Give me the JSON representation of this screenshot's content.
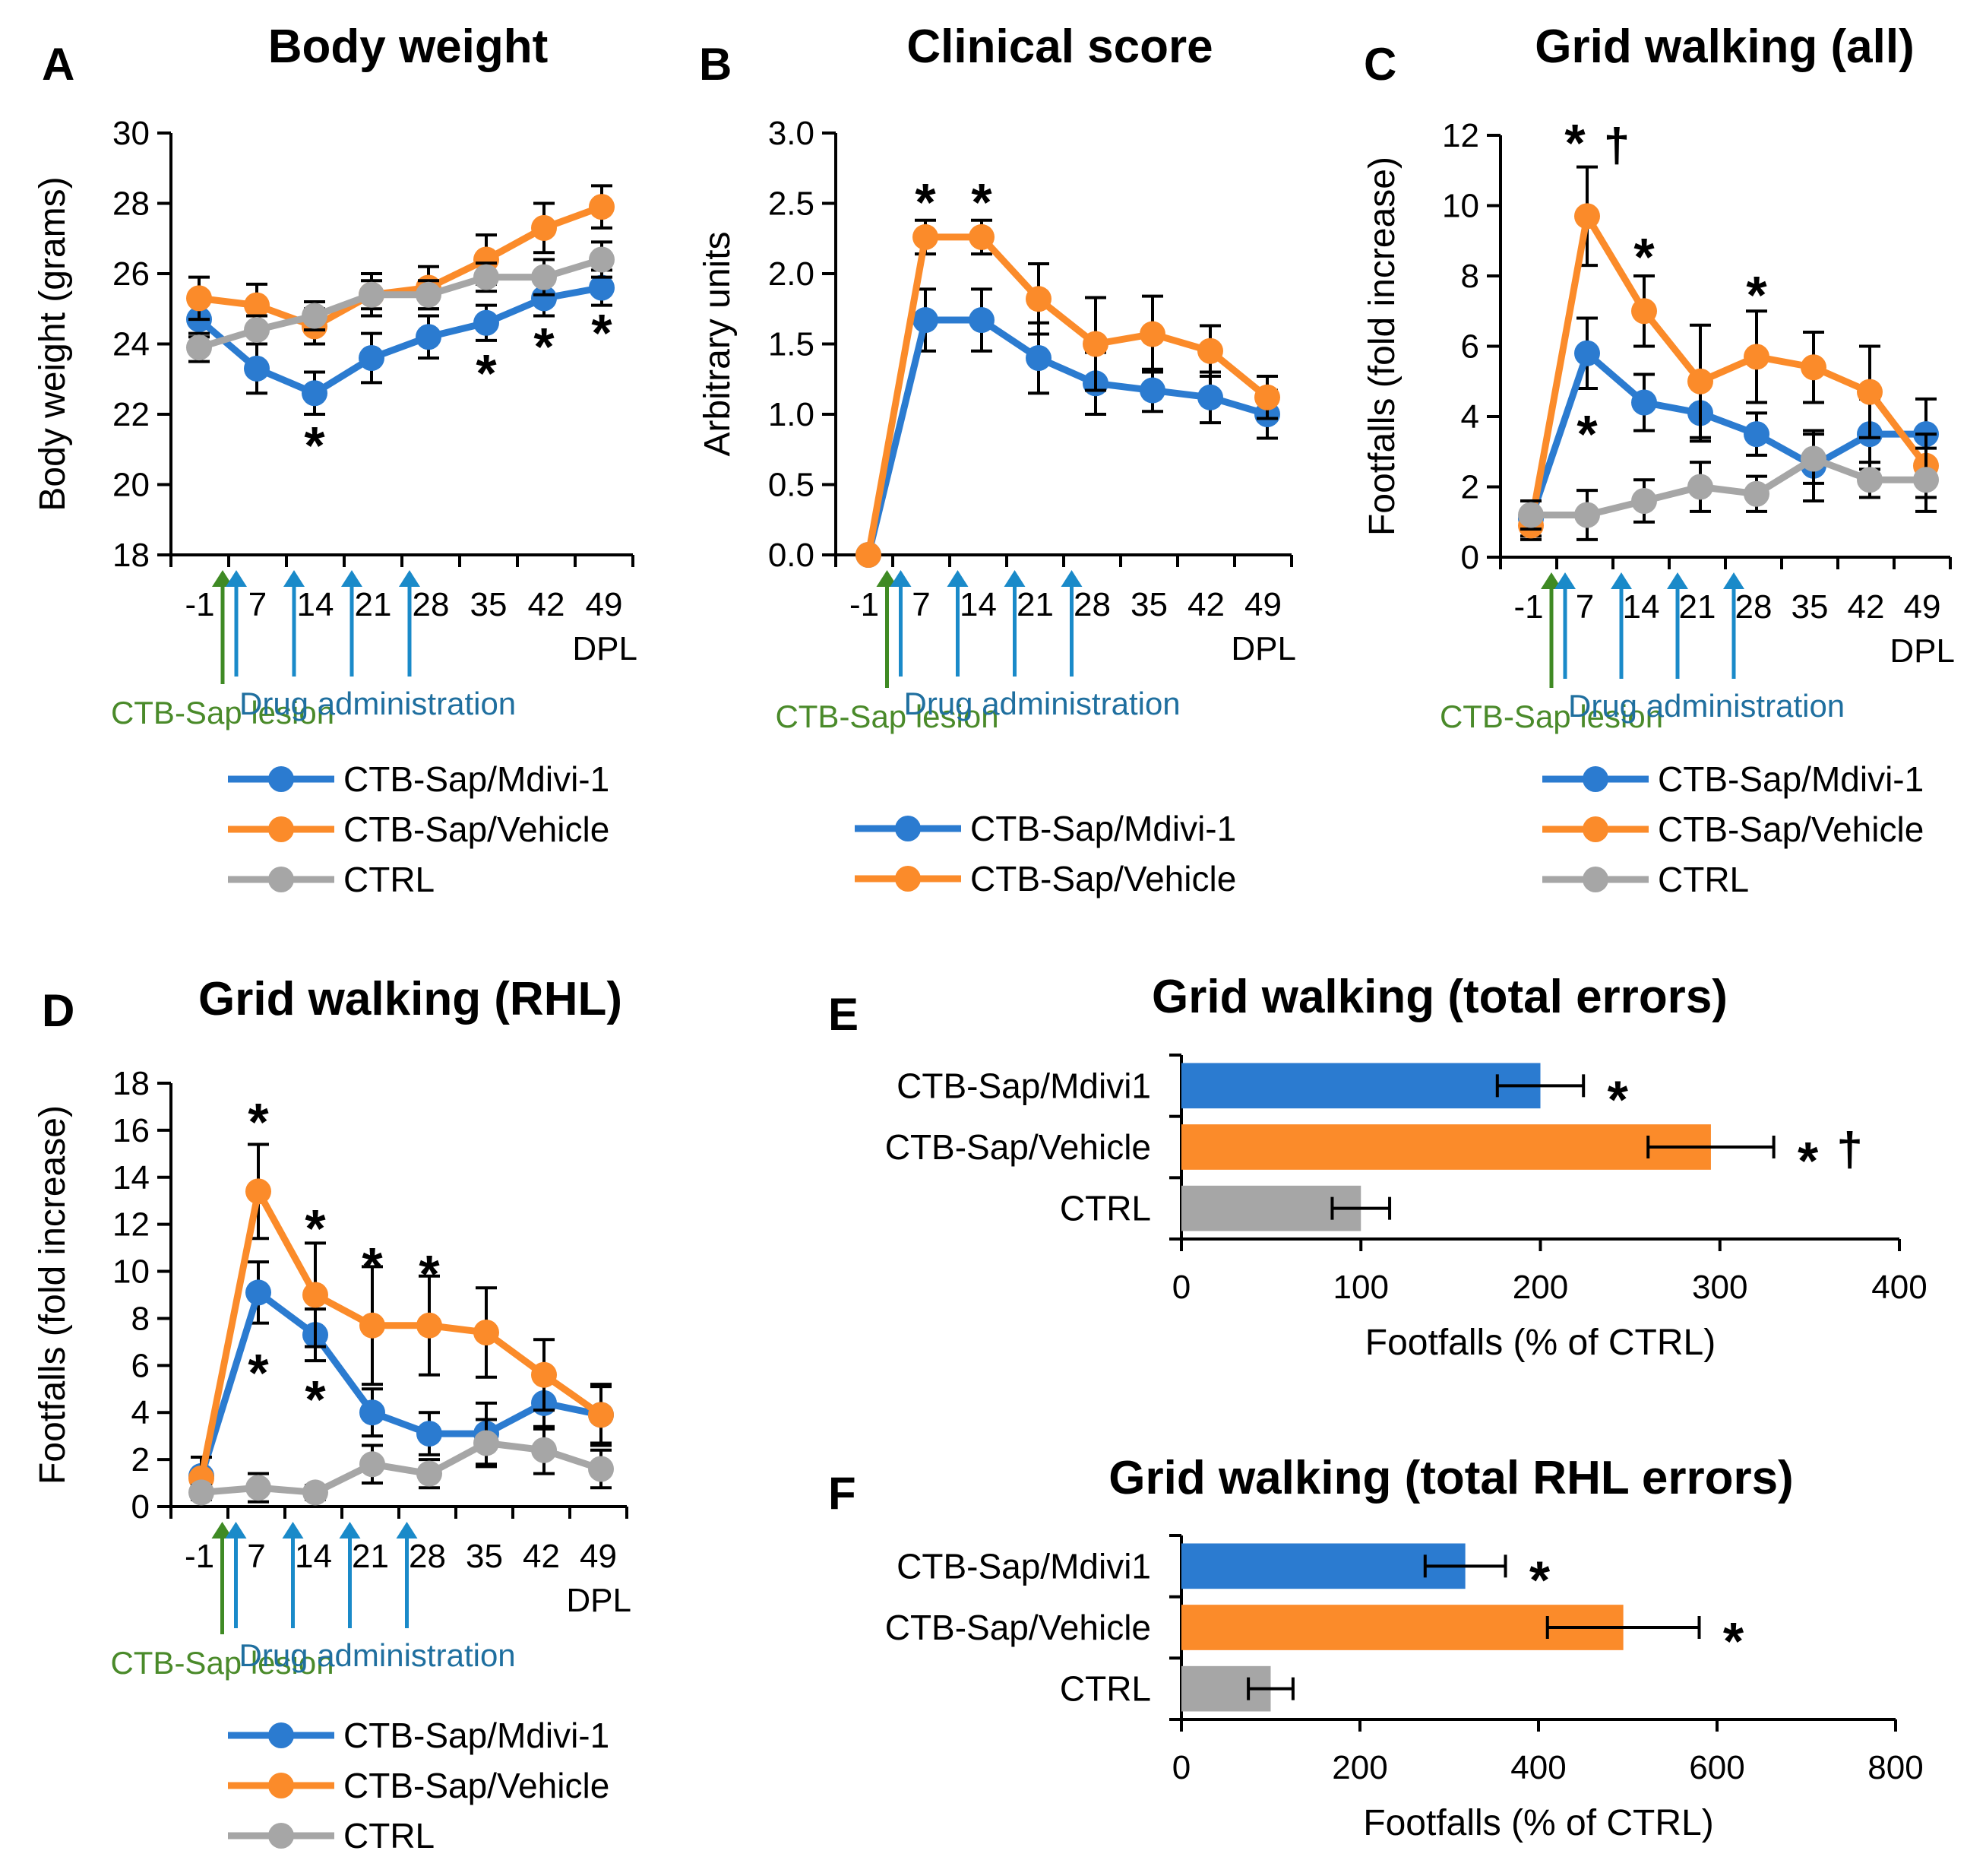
{
  "colors": {
    "mdivi": "#2b7bd0",
    "vehicle": "#fb8b2a",
    "ctrl": "#a6a6a6",
    "lesion_arrow": "#3f8a24",
    "drug_arrow": "#1a8ac9"
  },
  "legend": {
    "mdivi": "CTB-Sap/Mdivi-1",
    "vehicle": "CTB-Sap/Vehicle",
    "ctrl": "CTRL"
  },
  "annotations": {
    "lesion": "CTB-Sap lesion",
    "drug": "Drug administration",
    "dpl": "DPL"
  },
  "symbols": {
    "star": "*",
    "dagger": "†"
  },
  "panels": {
    "A": {
      "letter": "A"
    },
    "B": {
      "letter": "B"
    },
    "C": {
      "letter": "C"
    },
    "D": {
      "letter": "D"
    },
    "E": {
      "letter": "E"
    },
    "F": {
      "letter": "F"
    }
  },
  "chart_data": [
    {
      "id": "A",
      "type": "line",
      "title": "Body weight",
      "xlabel": "",
      "ylabel": "Body weight (grams)",
      "x_ticks": [
        "-1",
        "7",
        "14",
        "21",
        "28",
        "35",
        "42",
        "49"
      ],
      "x": [
        -1,
        3,
        7,
        10,
        14,
        17,
        21,
        24,
        28,
        31,
        35,
        38,
        42,
        45,
        49
      ],
      "ylim": [
        18,
        30
      ],
      "y_ticks": [
        18,
        20,
        22,
        24,
        26,
        28,
        30
      ],
      "series": [
        {
          "name": "CTB-Sap/Mdivi-1",
          "values": [
            24.7,
            null,
            23.3,
            null,
            22.6,
            null,
            23.6,
            null,
            24.2,
            null,
            24.6,
            null,
            25.3,
            null,
            25.6
          ],
          "errors": [
            0.5,
            null,
            0.7,
            null,
            0.6,
            null,
            0.7,
            null,
            0.6,
            null,
            0.5,
            null,
            0.5,
            null,
            0.5
          ]
        },
        {
          "name": "CTB-Sap/Vehicle",
          "values": [
            25.3,
            null,
            25.1,
            null,
            24.5,
            null,
            25.4,
            null,
            25.6,
            null,
            26.4,
            null,
            27.3,
            null,
            27.9
          ],
          "errors": [
            0.6,
            null,
            0.6,
            null,
            0.5,
            null,
            0.6,
            null,
            0.6,
            null,
            0.7,
            null,
            0.7,
            null,
            0.6
          ]
        },
        {
          "name": "CTRL",
          "values": [
            23.9,
            null,
            24.4,
            null,
            24.8,
            null,
            25.4,
            null,
            25.4,
            null,
            25.9,
            null,
            25.9,
            null,
            26.4
          ],
          "errors": [
            0.4,
            null,
            0.4,
            null,
            0.4,
            null,
            0.4,
            null,
            0.4,
            null,
            0.4,
            null,
            0.5,
            null,
            0.5
          ]
        }
      ],
      "significance": [
        {
          "x": 14,
          "symbol": "*",
          "position": "below"
        },
        {
          "x": 35,
          "symbol": "*",
          "position": "below"
        },
        {
          "x": 42,
          "symbol": "*",
          "position": "below"
        },
        {
          "x": 49,
          "symbol": "*",
          "position": "below"
        }
      ],
      "lesion_day": 0,
      "drug_days": [
        1,
        8,
        15,
        22
      ]
    },
    {
      "id": "B",
      "type": "line",
      "title": "Clinical score",
      "ylabel": "Arbitrary units",
      "x_ticks": [
        "-1",
        "7",
        "14",
        "21",
        "28",
        "35",
        "42",
        "49"
      ],
      "ylim": [
        0,
        3
      ],
      "y_ticks": [
        "0.0",
        "0.5",
        "1.0",
        "1.5",
        "2.0",
        "2.5",
        "3.0"
      ],
      "x": [
        -1,
        3,
        7,
        14,
        21,
        28,
        35,
        42,
        49
      ],
      "series": [
        {
          "name": "CTB-Sap/Mdivi-1",
          "values": [
            0.0,
            1.67,
            1.67,
            1.4,
            1.22,
            1.17,
            1.12,
            1.0
          ],
          "x": [
            -1,
            5,
            12,
            19,
            26,
            33,
            40,
            47
          ],
          "errors": [
            0,
            0.22,
            0.22,
            0.25,
            0.22,
            0.15,
            0.18,
            0.17
          ]
        },
        {
          "name": "CTB-Sap/Vehicle",
          "values": [
            0.0,
            2.26,
            2.26,
            1.82,
            1.5,
            1.57,
            1.45,
            1.12
          ],
          "x": [
            -1,
            5,
            12,
            19,
            26,
            33,
            40,
            47
          ],
          "errors": [
            0,
            0.12,
            0.12,
            0.25,
            0.33,
            0.27,
            0.18,
            0.15
          ]
        }
      ],
      "significance": [
        {
          "x": 5,
          "symbol": "*",
          "position": "above"
        },
        {
          "x": 12,
          "symbol": "*",
          "position": "above"
        }
      ],
      "lesion_day": 0,
      "drug_days": [
        1,
        8,
        15,
        22
      ]
    },
    {
      "id": "C",
      "type": "line",
      "title": "Grid walking (all)",
      "ylabel": "Footfalls (fold increase)",
      "x_ticks": [
        "-1",
        "7",
        "14",
        "21",
        "28",
        "35",
        "42",
        "49"
      ],
      "ylim": [
        0,
        12
      ],
      "y_ticks": [
        0,
        2,
        4,
        6,
        8,
        10,
        12
      ],
      "series": [
        {
          "name": "CTB-Sap/Mdivi-1",
          "x": [
            -1,
            5,
            12,
            19,
            26,
            33,
            40,
            47
          ],
          "values": [
            1.1,
            5.8,
            4.4,
            4.1,
            3.5,
            2.6,
            3.5,
            3.5
          ],
          "errors": [
            0.5,
            1.0,
            0.8,
            0.8,
            0.6,
            1.0,
            1.0,
            1.0
          ]
        },
        {
          "name": "CTB-Sap/Vehicle",
          "x": [
            -1,
            5,
            12,
            19,
            26,
            33,
            40,
            47
          ],
          "values": [
            0.9,
            9.7,
            7.0,
            5.0,
            5.7,
            5.4,
            4.7,
            2.6
          ],
          "errors": [
            0.4,
            1.4,
            1.0,
            1.6,
            1.3,
            1.0,
            1.3,
            0.9
          ]
        },
        {
          "name": "CTRL",
          "x": [
            -1,
            5,
            12,
            19,
            26,
            33,
            40,
            47
          ],
          "values": [
            1.2,
            1.2,
            1.6,
            2.0,
            1.8,
            2.8,
            2.2,
            2.2
          ],
          "errors": [
            0.4,
            0.7,
            0.6,
            0.7,
            0.5,
            0.7,
            0.5,
            0.9
          ]
        }
      ],
      "significance": [
        {
          "x": 5,
          "symbol": "*†",
          "position": "above"
        },
        {
          "x": 12,
          "symbol": "*",
          "position": "above"
        },
        {
          "x": 26,
          "symbol": "*",
          "position": "above"
        },
        {
          "x": 5,
          "symbol": "*",
          "position": "below"
        }
      ],
      "lesion_day": 0,
      "drug_days": [
        1,
        8,
        15,
        22
      ]
    },
    {
      "id": "D",
      "type": "line",
      "title": "Grid walking (RHL)",
      "ylabel": "Footfalls (fold increase)",
      "x_ticks": [
        "-1",
        "7",
        "14",
        "21",
        "28",
        "35",
        "42",
        "49"
      ],
      "ylim": [
        0,
        18
      ],
      "y_ticks": [
        0,
        2,
        4,
        6,
        8,
        10,
        12,
        14,
        16,
        18
      ],
      "series": [
        {
          "name": "CTB-Sap/Mdivi-1",
          "x": [
            -1,
            5,
            12,
            19,
            26,
            33,
            40,
            47
          ],
          "values": [
            1.3,
            9.1,
            7.3,
            4.0,
            3.1,
            3.1,
            4.4,
            3.9
          ],
          "errors": [
            0.8,
            1.3,
            1.1,
            1.0,
            0.9,
            1.3,
            1.1,
            1.3
          ]
        },
        {
          "name": "CTB-Sap/Vehicle",
          "x": [
            -1,
            5,
            12,
            19,
            26,
            33,
            40,
            47
          ],
          "values": [
            1.2,
            13.4,
            9.0,
            7.7,
            7.7,
            7.4,
            5.6,
            3.9
          ],
          "errors": [
            0.9,
            2.0,
            2.2,
            2.5,
            2.1,
            1.9,
            1.5,
            1.2
          ]
        },
        {
          "name": "CTRL",
          "x": [
            -1,
            5,
            12,
            19,
            26,
            33,
            40,
            47
          ],
          "values": [
            0.6,
            0.8,
            0.6,
            1.8,
            1.4,
            2.7,
            2.4,
            1.6
          ],
          "errors": [
            0.3,
            0.6,
            0.3,
            0.8,
            0.6,
            1.0,
            1.0,
            0.8
          ]
        }
      ],
      "significance": [
        {
          "x": 5,
          "symbol": "*",
          "position": "above"
        },
        {
          "x": 12,
          "symbol": "*",
          "position": "above"
        },
        {
          "x": 19,
          "symbol": "*",
          "position": "above"
        },
        {
          "x": 26,
          "symbol": "*",
          "position": "above"
        },
        {
          "x": 5,
          "symbol": "*",
          "position": "below"
        },
        {
          "x": 12,
          "symbol": "*",
          "position": "below"
        }
      ],
      "lesion_day": 0,
      "drug_days": [
        1,
        8,
        15,
        22
      ]
    },
    {
      "id": "E",
      "type": "bar",
      "orientation": "horizontal",
      "title": "Grid walking (total errors)",
      "xlabel": "Footfalls (% of CTRL)",
      "categories": [
        "CTB-Sap/Mdivi1",
        "CTB-Sap/Vehicle",
        "CTRL"
      ],
      "values": [
        200,
        295,
        100
      ],
      "errors": [
        24,
        35,
        16
      ],
      "xlim": [
        0,
        400
      ],
      "x_ticks": [
        0,
        100,
        200,
        300,
        400
      ],
      "markers": [
        "*",
        "*†",
        ""
      ]
    },
    {
      "id": "F",
      "type": "bar",
      "orientation": "horizontal",
      "title": "Grid walking (total RHL errors)",
      "xlabel": "Footfalls (% of CTRL)",
      "categories": [
        "CTB-Sap/Mdivi1",
        "CTB-Sap/Vehicle",
        "CTRL"
      ],
      "values": [
        318,
        495,
        100
      ],
      "errors": [
        45,
        85,
        25
      ],
      "xlim": [
        0,
        800
      ],
      "x_ticks": [
        0,
        200,
        400,
        600,
        800
      ],
      "markers": [
        "*",
        "*",
        ""
      ]
    }
  ]
}
